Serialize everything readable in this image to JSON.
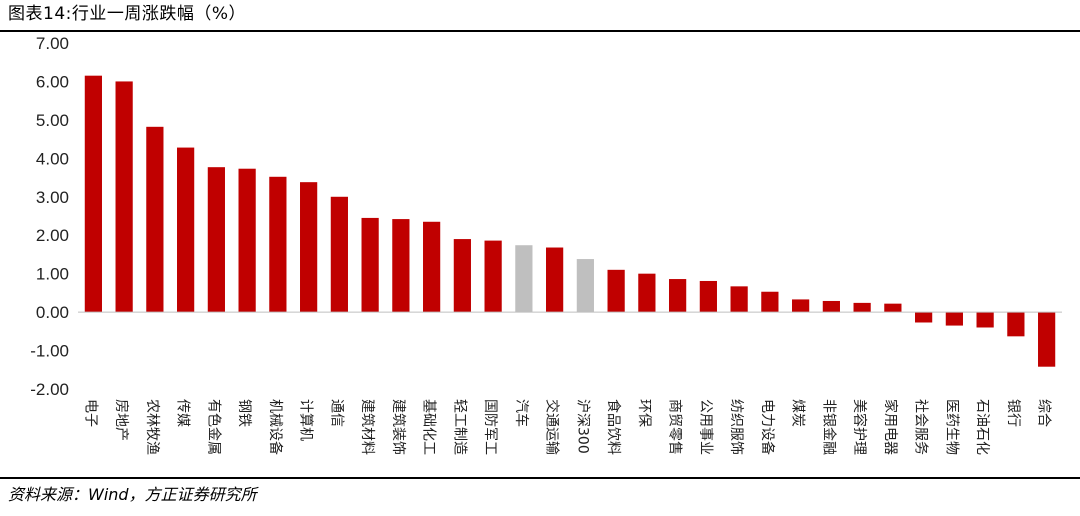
{
  "figure": {
    "title": "图表14:行业一周涨跌幅（%）",
    "source": "资料来源：Wind，方正证券研究所"
  },
  "colors": {
    "main": "#c00000",
    "highlight": "#bfbfbf",
    "axis": "#bfbfbf"
  },
  "chart_data": {
    "type": "bar",
    "title": "",
    "xlabel": "",
    "ylabel": "",
    "ylim": [
      -2,
      7
    ],
    "yticks": [
      "7.00",
      "6.00",
      "5.00",
      "4.00",
      "3.00",
      "2.00",
      "1.00",
      "0.00",
      "-1.00",
      "-2.00"
    ],
    "ytick_values": [
      7,
      6,
      5,
      4,
      3,
      2,
      1,
      0,
      -1,
      -2
    ],
    "grid": false,
    "legend": "none",
    "categories": [
      "电子",
      "房地产",
      "农林牧渔",
      "传媒",
      "有色金属",
      "钢铁",
      "机械设备",
      "计算机",
      "通信",
      "建筑材料",
      "建筑装饰",
      "基础化工",
      "轻工制造",
      "国防军工",
      "汽车",
      "交通运输",
      "沪深300",
      "食品饮料",
      "环保",
      "商贸零售",
      "公用事业",
      "纺织服饰",
      "电力设备",
      "煤炭",
      "非银金融",
      "美容护理",
      "家用电器",
      "社会服务",
      "医药生物",
      "石油石化",
      "银行",
      "综合"
    ],
    "values": [
      6.15,
      6.0,
      4.82,
      4.28,
      3.77,
      3.73,
      3.52,
      3.38,
      3.0,
      2.45,
      2.42,
      2.35,
      1.9,
      1.86,
      1.74,
      1.68,
      1.38,
      1.1,
      1.0,
      0.86,
      0.81,
      0.67,
      0.53,
      0.33,
      0.29,
      0.24,
      0.22,
      -0.27,
      -0.35,
      -0.4,
      -0.63,
      -1.42
    ],
    "highlight": [
      "汽车",
      "沪深300"
    ]
  }
}
